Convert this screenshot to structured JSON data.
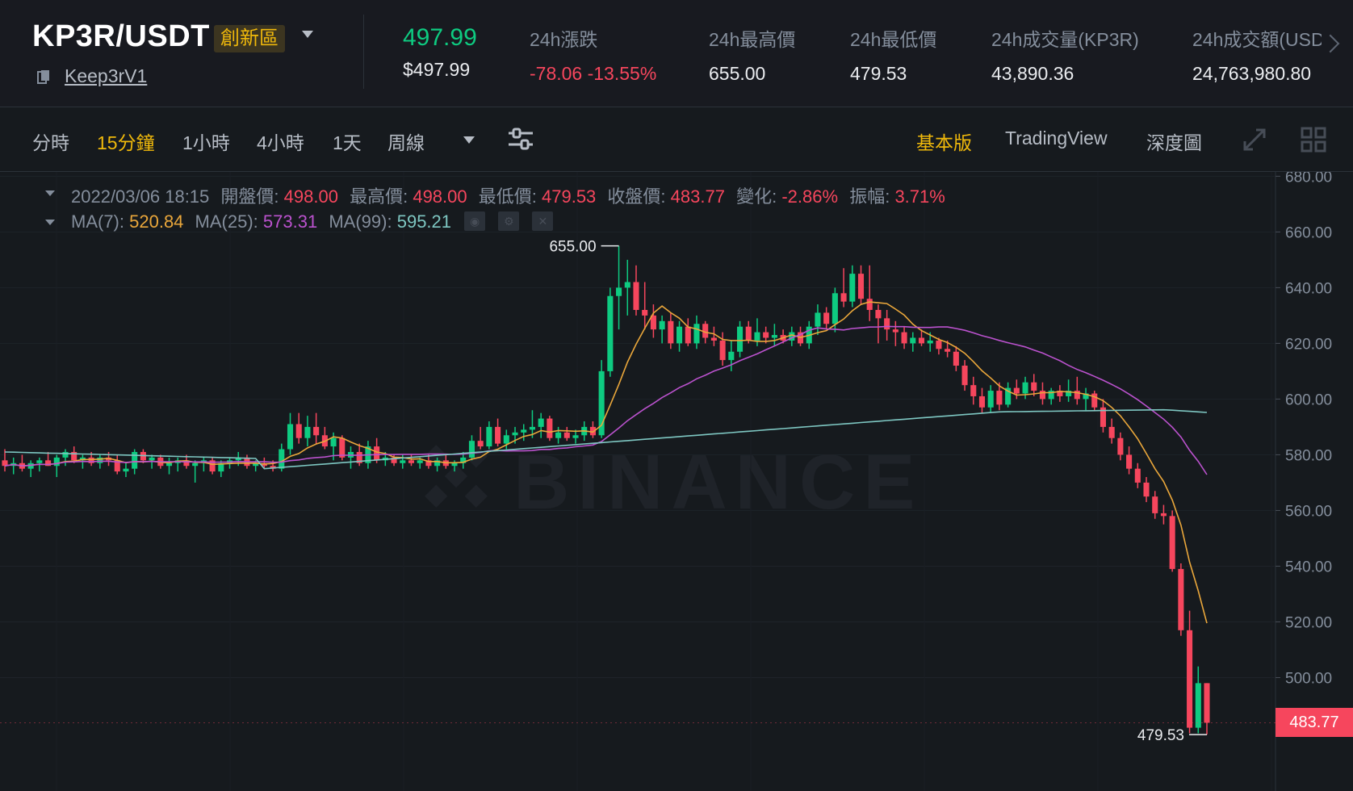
{
  "header": {
    "pair": "KP3R/USDT",
    "tag": "創新區",
    "token_link": "Keep3rV1",
    "last_price": "497.99",
    "last_price_usd": "$497.99",
    "stats": [
      {
        "label": "24h漲跌",
        "value": "-78.06 -13.55%",
        "color": "red"
      },
      {
        "label": "24h最高價",
        "value": "655.00",
        "color": "white"
      },
      {
        "label": "24h最低價",
        "value": "479.53",
        "color": "white"
      },
      {
        "label": "24h成交量(KP3R)",
        "value": "43,890.36",
        "color": "white"
      },
      {
        "label": "24h成交額(USD",
        "value": "24,763,980.80",
        "color": "white"
      }
    ]
  },
  "toolbar": {
    "timeframes": [
      "分時",
      "15分鐘",
      "1小時",
      "4小時",
      "1天",
      "周線"
    ],
    "active_timeframe": "15分鐘",
    "views": [
      "基本版",
      "TradingView",
      "深度圖"
    ],
    "active_view": "基本版"
  },
  "info": {
    "datetime": "2022/03/06 18:15",
    "open_label": "開盤價:",
    "open": "498.00",
    "high_label": "最高價:",
    "high": "498.00",
    "low_label": "最低價:",
    "low": "479.53",
    "close_label": "收盤價:",
    "close": "483.77",
    "change_label": "變化:",
    "change": "-2.86%",
    "amplitude_label": "振幅:",
    "amplitude": "3.71%",
    "ma7_label": "MA(7):",
    "ma7": "520.84",
    "ma25_label": "MA(25):",
    "ma25": "573.31",
    "ma99_label": "MA(99):",
    "ma99": "595.21"
  },
  "watermark": "BINANCE",
  "colors": {
    "up": "#0ecb81",
    "down": "#f6465d",
    "ma7": "#eaa73b",
    "ma25": "#bb52ce",
    "ma99": "#7ec7c2",
    "accent": "#f0b90b"
  },
  "chart_data": {
    "type": "candlestick",
    "y_axis_ticks": [
      "680.00",
      "660.00",
      "640.00",
      "620.00",
      "600.00",
      "580.00",
      "560.00",
      "540.00",
      "520.00",
      "500.00"
    ],
    "ylim": [
      470,
      683
    ],
    "current_price_label": "483.77",
    "high_marker": "655.00",
    "low_marker": "479.53",
    "candles": [
      {
        "o": 578,
        "h": 582,
        "l": 574,
        "c": 576
      },
      {
        "o": 576,
        "h": 579,
        "l": 573,
        "c": 577
      },
      {
        "o": 577,
        "h": 580,
        "l": 574,
        "c": 575
      },
      {
        "o": 575,
        "h": 578,
        "l": 572,
        "c": 577
      },
      {
        "o": 577,
        "h": 579,
        "l": 574,
        "c": 578
      },
      {
        "o": 578,
        "h": 581,
        "l": 576,
        "c": 576
      },
      {
        "o": 576,
        "h": 580,
        "l": 572,
        "c": 579
      },
      {
        "o": 579,
        "h": 582,
        "l": 576,
        "c": 581
      },
      {
        "o": 581,
        "h": 583,
        "l": 577,
        "c": 578
      },
      {
        "o": 578,
        "h": 580,
        "l": 575,
        "c": 579
      },
      {
        "o": 579,
        "h": 581,
        "l": 576,
        "c": 577
      },
      {
        "o": 577,
        "h": 580,
        "l": 575,
        "c": 579
      },
      {
        "o": 579,
        "h": 581,
        "l": 576,
        "c": 578
      },
      {
        "o": 578,
        "h": 580,
        "l": 573,
        "c": 574
      },
      {
        "o": 574,
        "h": 577,
        "l": 572,
        "c": 575
      },
      {
        "o": 575,
        "h": 582,
        "l": 573,
        "c": 581
      },
      {
        "o": 581,
        "h": 582,
        "l": 577,
        "c": 578
      },
      {
        "o": 578,
        "h": 580,
        "l": 575,
        "c": 579
      },
      {
        "o": 579,
        "h": 580,
        "l": 575,
        "c": 576
      },
      {
        "o": 576,
        "h": 579,
        "l": 573,
        "c": 577
      },
      {
        "o": 577,
        "h": 579,
        "l": 574,
        "c": 578
      },
      {
        "o": 578,
        "h": 580,
        "l": 575,
        "c": 576
      },
      {
        "o": 576,
        "h": 578,
        "l": 570,
        "c": 577
      },
      {
        "o": 577,
        "h": 579,
        "l": 574,
        "c": 578
      },
      {
        "o": 578,
        "h": 579,
        "l": 573,
        "c": 574
      },
      {
        "o": 574,
        "h": 578,
        "l": 572,
        "c": 577
      },
      {
        "o": 577,
        "h": 579,
        "l": 575,
        "c": 578
      },
      {
        "o": 578,
        "h": 581,
        "l": 576,
        "c": 579
      },
      {
        "o": 579,
        "h": 580,
        "l": 575,
        "c": 576
      },
      {
        "o": 576,
        "h": 578,
        "l": 574,
        "c": 577
      },
      {
        "o": 577,
        "h": 579,
        "l": 575,
        "c": 576
      },
      {
        "o": 576,
        "h": 578,
        "l": 574,
        "c": 575
      },
      {
        "o": 575,
        "h": 584,
        "l": 574,
        "c": 582
      },
      {
        "o": 582,
        "h": 595,
        "l": 580,
        "c": 591
      },
      {
        "o": 591,
        "h": 595,
        "l": 584,
        "c": 586
      },
      {
        "o": 586,
        "h": 594,
        "l": 583,
        "c": 590
      },
      {
        "o": 590,
        "h": 595,
        "l": 584,
        "c": 587
      },
      {
        "o": 587,
        "h": 590,
        "l": 582,
        "c": 583
      },
      {
        "o": 583,
        "h": 588,
        "l": 578,
        "c": 586
      },
      {
        "o": 586,
        "h": 587,
        "l": 578,
        "c": 579
      },
      {
        "o": 579,
        "h": 583,
        "l": 575,
        "c": 581
      },
      {
        "o": 581,
        "h": 584,
        "l": 576,
        "c": 577
      },
      {
        "o": 577,
        "h": 585,
        "l": 575,
        "c": 583
      },
      {
        "o": 583,
        "h": 586,
        "l": 577,
        "c": 578
      },
      {
        "o": 578,
        "h": 581,
        "l": 576,
        "c": 579
      },
      {
        "o": 579,
        "h": 580,
        "l": 576,
        "c": 577
      },
      {
        "o": 577,
        "h": 580,
        "l": 575,
        "c": 578
      },
      {
        "o": 578,
        "h": 580,
        "l": 576,
        "c": 577
      },
      {
        "o": 577,
        "h": 579,
        "l": 575,
        "c": 578
      },
      {
        "o": 578,
        "h": 580,
        "l": 575,
        "c": 576
      },
      {
        "o": 576,
        "h": 579,
        "l": 574,
        "c": 578
      },
      {
        "o": 578,
        "h": 580,
        "l": 575,
        "c": 576
      },
      {
        "o": 576,
        "h": 578,
        "l": 574,
        "c": 577
      },
      {
        "o": 577,
        "h": 581,
        "l": 575,
        "c": 579
      },
      {
        "o": 579,
        "h": 587,
        "l": 578,
        "c": 585
      },
      {
        "o": 585,
        "h": 590,
        "l": 582,
        "c": 583
      },
      {
        "o": 583,
        "h": 592,
        "l": 582,
        "c": 590
      },
      {
        "o": 590,
        "h": 593,
        "l": 583,
        "c": 584
      },
      {
        "o": 584,
        "h": 589,
        "l": 582,
        "c": 587
      },
      {
        "o": 587,
        "h": 590,
        "l": 584,
        "c": 588
      },
      {
        "o": 588,
        "h": 591,
        "l": 585,
        "c": 589
      },
      {
        "o": 589,
        "h": 596,
        "l": 586,
        "c": 590
      },
      {
        "o": 590,
        "h": 595,
        "l": 586,
        "c": 593
      },
      {
        "o": 593,
        "h": 594,
        "l": 585,
        "c": 586
      },
      {
        "o": 586,
        "h": 590,
        "l": 584,
        "c": 588
      },
      {
        "o": 588,
        "h": 590,
        "l": 585,
        "c": 586
      },
      {
        "o": 586,
        "h": 589,
        "l": 584,
        "c": 587
      },
      {
        "o": 587,
        "h": 592,
        "l": 585,
        "c": 590
      },
      {
        "o": 590,
        "h": 592,
        "l": 586,
        "c": 587
      },
      {
        "o": 587,
        "h": 614,
        "l": 586,
        "c": 610
      },
      {
        "o": 610,
        "h": 640,
        "l": 608,
        "c": 637
      },
      {
        "o": 637,
        "h": 655,
        "l": 625,
        "c": 640
      },
      {
        "o": 640,
        "h": 650,
        "l": 630,
        "c": 642
      },
      {
        "o": 642,
        "h": 648,
        "l": 630,
        "c": 632
      },
      {
        "o": 632,
        "h": 642,
        "l": 625,
        "c": 630
      },
      {
        "o": 630,
        "h": 634,
        "l": 622,
        "c": 625
      },
      {
        "o": 625,
        "h": 630,
        "l": 620,
        "c": 628
      },
      {
        "o": 628,
        "h": 631,
        "l": 618,
        "c": 620
      },
      {
        "o": 620,
        "h": 628,
        "l": 617,
        "c": 626
      },
      {
        "o": 626,
        "h": 629,
        "l": 619,
        "c": 620
      },
      {
        "o": 620,
        "h": 630,
        "l": 618,
        "c": 627
      },
      {
        "o": 627,
        "h": 628,
        "l": 620,
        "c": 622
      },
      {
        "o": 622,
        "h": 626,
        "l": 619,
        "c": 621
      },
      {
        "o": 621,
        "h": 624,
        "l": 612,
        "c": 614
      },
      {
        "o": 614,
        "h": 621,
        "l": 610,
        "c": 617
      },
      {
        "o": 617,
        "h": 628,
        "l": 615,
        "c": 626
      },
      {
        "o": 626,
        "h": 628,
        "l": 620,
        "c": 621
      },
      {
        "o": 621,
        "h": 629,
        "l": 619,
        "c": 624
      },
      {
        "o": 624,
        "h": 626,
        "l": 620,
        "c": 622
      },
      {
        "o": 622,
        "h": 627,
        "l": 619,
        "c": 623
      },
      {
        "o": 623,
        "h": 625,
        "l": 620,
        "c": 621
      },
      {
        "o": 621,
        "h": 626,
        "l": 619,
        "c": 624
      },
      {
        "o": 624,
        "h": 626,
        "l": 619,
        "c": 620
      },
      {
        "o": 620,
        "h": 628,
        "l": 618,
        "c": 626
      },
      {
        "o": 626,
        "h": 634,
        "l": 623,
        "c": 631
      },
      {
        "o": 631,
        "h": 633,
        "l": 625,
        "c": 627
      },
      {
        "o": 627,
        "h": 640,
        "l": 624,
        "c": 638
      },
      {
        "o": 638,
        "h": 647,
        "l": 633,
        "c": 635
      },
      {
        "o": 635,
        "h": 648,
        "l": 633,
        "c": 645
      },
      {
        "o": 645,
        "h": 648,
        "l": 634,
        "c": 636
      },
      {
        "o": 636,
        "h": 648,
        "l": 628,
        "c": 632
      },
      {
        "o": 632,
        "h": 634,
        "l": 620,
        "c": 629
      },
      {
        "o": 629,
        "h": 632,
        "l": 621,
        "c": 625
      },
      {
        "o": 625,
        "h": 628,
        "l": 619,
        "c": 624
      },
      {
        "o": 624,
        "h": 626,
        "l": 618,
        "c": 620
      },
      {
        "o": 620,
        "h": 624,
        "l": 617,
        "c": 622
      },
      {
        "o": 622,
        "h": 625,
        "l": 619,
        "c": 620
      },
      {
        "o": 620,
        "h": 624,
        "l": 617,
        "c": 621
      },
      {
        "o": 621,
        "h": 622,
        "l": 616,
        "c": 618
      },
      {
        "o": 618,
        "h": 621,
        "l": 615,
        "c": 617
      },
      {
        "o": 617,
        "h": 619,
        "l": 610,
        "c": 612
      },
      {
        "o": 612,
        "h": 614,
        "l": 603,
        "c": 605
      },
      {
        "o": 605,
        "h": 608,
        "l": 598,
        "c": 601
      },
      {
        "o": 601,
        "h": 604,
        "l": 595,
        "c": 597
      },
      {
        "o": 597,
        "h": 605,
        "l": 595,
        "c": 603
      },
      {
        "o": 603,
        "h": 606,
        "l": 596,
        "c": 598
      },
      {
        "o": 598,
        "h": 606,
        "l": 597,
        "c": 604
      },
      {
        "o": 604,
        "h": 607,
        "l": 600,
        "c": 602
      },
      {
        "o": 602,
        "h": 608,
        "l": 600,
        "c": 606
      },
      {
        "o": 606,
        "h": 609,
        "l": 601,
        "c": 603
      },
      {
        "o": 603,
        "h": 606,
        "l": 598,
        "c": 600
      },
      {
        "o": 600,
        "h": 604,
        "l": 598,
        "c": 603
      },
      {
        "o": 603,
        "h": 605,
        "l": 599,
        "c": 601
      },
      {
        "o": 601,
        "h": 607,
        "l": 599,
        "c": 603
      },
      {
        "o": 603,
        "h": 608,
        "l": 598,
        "c": 600
      },
      {
        "o": 600,
        "h": 604,
        "l": 596,
        "c": 602
      },
      {
        "o": 602,
        "h": 603,
        "l": 596,
        "c": 597
      },
      {
        "o": 597,
        "h": 600,
        "l": 588,
        "c": 590
      },
      {
        "o": 590,
        "h": 593,
        "l": 584,
        "c": 586
      },
      {
        "o": 586,
        "h": 588,
        "l": 578,
        "c": 580
      },
      {
        "o": 580,
        "h": 583,
        "l": 573,
        "c": 575
      },
      {
        "o": 575,
        "h": 577,
        "l": 568,
        "c": 570
      },
      {
        "o": 570,
        "h": 572,
        "l": 563,
        "c": 565
      },
      {
        "o": 565,
        "h": 567,
        "l": 557,
        "c": 559
      },
      {
        "o": 559,
        "h": 562,
        "l": 555,
        "c": 558
      },
      {
        "o": 558,
        "h": 560,
        "l": 538,
        "c": 539
      },
      {
        "o": 539,
        "h": 541,
        "l": 515,
        "c": 517
      },
      {
        "o": 517,
        "h": 524,
        "l": 480,
        "c": 482
      },
      {
        "o": 482,
        "h": 504,
        "l": 480,
        "c": 498
      },
      {
        "o": 498,
        "h": 498,
        "l": 479.53,
        "c": 483.77
      }
    ]
  }
}
